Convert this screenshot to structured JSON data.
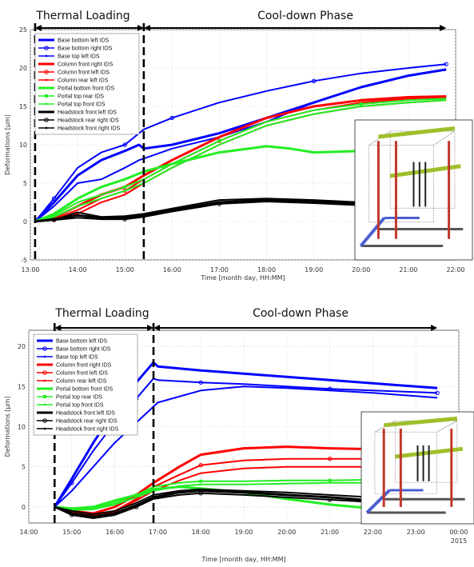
{
  "chart_data": [
    {
      "type": "line",
      "phase_labels": [
        "Thermal Loading",
        "Cool-down Phase"
      ],
      "xlabel": "Time [month day, HH:MM]",
      "ylabel": "Deformations [μm]",
      "x_ticks": [
        "13:00",
        "14:00",
        "15:00",
        "16:00",
        "17:00",
        "18:00",
        "19:00",
        "20:00",
        "21:00",
        "22:00"
      ],
      "y_ticks": [
        "-5",
        "0",
        "5",
        "10",
        "15",
        "20",
        "25"
      ],
      "xlim": [
        13.0,
        22.0
      ],
      "ylim": [
        -5,
        25
      ],
      "phase_boundaries": [
        13.1,
        15.4,
        21.8
      ],
      "grid": true,
      "legend": "top-left",
      "series": [
        {
          "name": "Base bottom left IDS",
          "color": "#0000ff",
          "marker": "none",
          "x": [
            13.1,
            13.5,
            14.0,
            14.5,
            15.0,
            15.3,
            15.4,
            16.0,
            17.0,
            18.0,
            19.0,
            20.0,
            21.0,
            21.8
          ],
          "values": [
            0,
            2.5,
            6.0,
            8.0,
            9.2,
            10.0,
            9.5,
            10.0,
            11.5,
            13.5,
            15.5,
            17.5,
            19.0,
            19.8
          ]
        },
        {
          "name": "Base bottom right IDS",
          "color": "#0000ff",
          "marker": "circle",
          "x": [
            13.1,
            13.5,
            14.0,
            14.5,
            15.0,
            15.3,
            15.4,
            16.0,
            17.0,
            18.0,
            19.0,
            20.0,
            21.0,
            21.8
          ],
          "values": [
            0,
            3.0,
            7.0,
            9.0,
            10.0,
            11.5,
            12.0,
            13.5,
            15.5,
            17.0,
            18.3,
            19.3,
            20.0,
            20.5
          ]
        },
        {
          "name": "Base top left IDS",
          "color": "#0000ff",
          "marker": "dot",
          "x": [
            13.1,
            13.5,
            14.0,
            14.5,
            15.0,
            15.3,
            15.4,
            16.0,
            17.0,
            18.0,
            19.0,
            20.0,
            21.0,
            21.8
          ],
          "values": [
            0,
            2.0,
            5.0,
            5.5,
            7.0,
            8.0,
            8.2,
            9.5,
            11.0,
            13.0,
            15.5,
            17.5,
            19.0,
            19.8
          ]
        },
        {
          "name": "Column front right IDS",
          "color": "#ff0000",
          "marker": "none",
          "x": [
            13.1,
            13.5,
            14.0,
            14.5,
            15.0,
            15.4,
            16.0,
            17.0,
            18.0,
            19.0,
            20.0,
            21.0,
            21.8
          ],
          "values": [
            0,
            0.5,
            2.0,
            3.5,
            4.5,
            6.0,
            8.0,
            11.0,
            13.5,
            15.0,
            15.8,
            16.2,
            16.3
          ]
        },
        {
          "name": "Column front left IDS",
          "color": "#ff0000",
          "marker": "circle",
          "x": [
            13.1,
            13.5,
            14.0,
            14.5,
            15.0,
            15.4,
            16.0,
            17.0,
            18.0,
            19.0,
            20.0,
            21.0,
            21.8
          ],
          "values": [
            0,
            0.3,
            1.5,
            3.0,
            4.0,
            5.5,
            7.5,
            10.5,
            13.0,
            14.5,
            15.5,
            16.0,
            16.2
          ]
        },
        {
          "name": "Column rear left IDS",
          "color": "#ff0000",
          "marker": "dot",
          "x": [
            13.1,
            13.5,
            14.0,
            14.5,
            15.0,
            15.4,
            16.0,
            17.0,
            18.0,
            19.0,
            20.0,
            21.0,
            21.8
          ],
          "values": [
            0,
            0.2,
            1.0,
            2.5,
            3.5,
            5.0,
            7.0,
            10.0,
            12.5,
            14.0,
            15.0,
            15.5,
            15.8
          ]
        },
        {
          "name": "Portal bottom front IDS",
          "color": "#22ee22",
          "marker": "none",
          "x": [
            13.1,
            13.5,
            14.0,
            14.5,
            15.0,
            15.4,
            16.0,
            17.0,
            18.0,
            18.5,
            19.0,
            20.0,
            21.0,
            21.8
          ],
          "values": [
            0,
            1.0,
            3.0,
            4.5,
            5.5,
            6.5,
            7.5,
            9.0,
            9.8,
            9.5,
            9.0,
            9.2,
            9.3,
            9.4
          ]
        },
        {
          "name": "Portal top rear IDS",
          "color": "#22ee22",
          "marker": "square",
          "x": [
            13.1,
            13.5,
            14.0,
            14.5,
            15.0,
            15.4,
            16.0,
            17.0,
            18.0,
            19.0,
            20.0,
            21.0,
            21.8
          ],
          "values": [
            0,
            0.8,
            2.5,
            3.5,
            4.5,
            5.5,
            7.5,
            10.5,
            13.0,
            14.5,
            15.3,
            15.8,
            16.0
          ]
        },
        {
          "name": "Portal top front IDS",
          "color": "#22ee22",
          "marker": "dot",
          "x": [
            13.1,
            13.5,
            14.0,
            14.5,
            15.0,
            15.4,
            16.0,
            17.0,
            18.0,
            19.0,
            20.0,
            21.0,
            21.8
          ],
          "values": [
            0,
            0.6,
            2.0,
            3.0,
            4.0,
            5.0,
            7.0,
            10.0,
            12.5,
            14.0,
            15.0,
            15.5,
            15.8
          ]
        },
        {
          "name": "Headstock front left IDS",
          "color": "#000000",
          "marker": "none",
          "x": [
            13.1,
            13.5,
            14.0,
            14.5,
            15.0,
            15.4,
            16.0,
            17.0,
            18.0,
            19.0,
            20.0,
            21.0,
            21.8
          ],
          "values": [
            0,
            0.3,
            0.8,
            0.5,
            0.5,
            0.8,
            1.5,
            2.5,
            2.8,
            2.6,
            2.3,
            2.2,
            2.3
          ]
        },
        {
          "name": "Headstock rear right IDS",
          "color": "#000000",
          "marker": "circle",
          "x": [
            13.1,
            13.5,
            14.0,
            14.5,
            15.0,
            15.4,
            16.0,
            17.0,
            18.0,
            19.0,
            20.0,
            21.0,
            21.8
          ],
          "values": [
            0,
            0.2,
            0.5,
            0.3,
            0.3,
            0.6,
            1.3,
            2.3,
            2.6,
            2.4,
            2.1,
            2.0,
            2.1
          ]
        },
        {
          "name": "Headstock front right IDS",
          "color": "#000000",
          "marker": "dot",
          "x": [
            13.1,
            13.5,
            14.0,
            14.5,
            15.0,
            15.4,
            16.0,
            17.0,
            18.0,
            19.0,
            20.0,
            21.0,
            21.8
          ],
          "values": [
            0,
            0.2,
            1.2,
            0.6,
            0.7,
            1.0,
            1.7,
            2.8,
            3.0,
            2.8,
            2.5,
            2.4,
            2.5
          ]
        }
      ]
    },
    {
      "type": "line",
      "phase_labels": [
        "Thermal Loading",
        "Cool-down Phase"
      ],
      "xlabel": "Time [month day, HH:MM]",
      "ylabel": "Deformations [μm]",
      "x_ticks": [
        "14:00",
        "15:00",
        "16:00",
        "17:00",
        "18:00",
        "19:00",
        "20:00",
        "21:00",
        "22:00",
        "23:00",
        "00:00"
      ],
      "x_tick_sub": "2015",
      "y_ticks": [
        "0",
        "5",
        "10",
        "15",
        "20"
      ],
      "xlim": [
        14.0,
        24.0
      ],
      "ylim": [
        -2,
        22
      ],
      "phase_boundaries": [
        14.6,
        16.9,
        23.5
      ],
      "grid": true,
      "legend": "top-left",
      "series": [
        {
          "name": "Base bottom left IDS",
          "color": "#0000ff",
          "marker": "none",
          "x": [
            14.6,
            15.0,
            15.5,
            16.0,
            16.5,
            16.9,
            17.0,
            18.0,
            19.0,
            20.0,
            21.0,
            22.0,
            23.0,
            23.5
          ],
          "values": [
            0,
            3.5,
            8.0,
            12.0,
            15.5,
            18.0,
            17.5,
            17.0,
            16.6,
            16.2,
            15.8,
            15.4,
            15.0,
            14.8
          ]
        },
        {
          "name": "Base bottom right IDS",
          "color": "#0000ff",
          "marker": "circle",
          "x": [
            14.6,
            15.0,
            15.5,
            16.0,
            16.5,
            16.9,
            17.0,
            18.0,
            19.0,
            20.0,
            21.0,
            22.0,
            23.0,
            23.5
          ],
          "values": [
            0,
            3.0,
            7.0,
            10.5,
            13.5,
            16.0,
            15.8,
            15.5,
            15.3,
            15.0,
            14.7,
            14.5,
            14.3,
            14.2
          ]
        },
        {
          "name": "Base top left IDS",
          "color": "#0000ff",
          "marker": "dot",
          "x": [
            14.6,
            15.0,
            15.5,
            16.0,
            16.5,
            16.9,
            17.0,
            18.0,
            19.0,
            20.0,
            21.0,
            22.0,
            23.0,
            23.5
          ],
          "values": [
            0,
            2.0,
            5.0,
            8.0,
            10.5,
            12.5,
            13.0,
            14.5,
            15.0,
            14.8,
            14.5,
            14.2,
            13.8,
            13.6
          ]
        },
        {
          "name": "Column front right IDS",
          "color": "#ff0000",
          "marker": "none",
          "x": [
            14.6,
            15.0,
            15.5,
            16.0,
            16.5,
            16.9,
            17.5,
            18.0,
            19.0,
            20.0,
            21.0,
            22.0,
            23.0,
            23.5
          ],
          "values": [
            0,
            -0.5,
            -0.8,
            0.0,
            1.5,
            3.0,
            5.0,
            6.5,
            7.3,
            7.5,
            7.3,
            7.2,
            7.1,
            7.0
          ]
        },
        {
          "name": "Column front left IDS",
          "color": "#ff0000",
          "marker": "circle",
          "x": [
            14.6,
            15.0,
            15.5,
            16.0,
            16.5,
            16.9,
            17.5,
            18.0,
            19.0,
            20.0,
            21.0,
            22.0,
            23.0,
            23.5
          ],
          "values": [
            0,
            -0.7,
            -1.0,
            -0.5,
            1.0,
            2.5,
            4.0,
            5.2,
            5.8,
            6.0,
            6.0,
            6.0,
            6.1,
            6.2
          ]
        },
        {
          "name": "Column rear left IDS",
          "color": "#ff0000",
          "marker": "dot",
          "x": [
            14.6,
            15.0,
            15.5,
            16.0,
            16.5,
            16.9,
            17.5,
            18.0,
            19.0,
            20.0,
            21.0,
            22.0,
            23.0,
            23.5
          ],
          "values": [
            0,
            -0.8,
            -1.2,
            -0.6,
            0.8,
            2.0,
            3.3,
            4.2,
            4.8,
            5.0,
            5.0,
            5.0,
            5.0,
            5.0
          ]
        },
        {
          "name": "Portal bottom front IDS",
          "color": "#22ee22",
          "marker": "none",
          "x": [
            14.6,
            15.0,
            15.5,
            16.0,
            16.5,
            16.9,
            17.5,
            18.0,
            19.0,
            20.0,
            21.0,
            22.0,
            23.0,
            23.5
          ],
          "values": [
            0,
            -0.2,
            0.0,
            0.8,
            1.5,
            2.2,
            2.5,
            2.3,
            1.8,
            1.0,
            0.3,
            -0.2,
            -0.8,
            -1.2
          ]
        },
        {
          "name": "Portal top rear IDS",
          "color": "#22ee22",
          "marker": "square",
          "x": [
            14.6,
            15.0,
            15.5,
            16.0,
            16.5,
            16.9,
            17.5,
            18.0,
            19.0,
            20.0,
            21.0,
            22.0,
            23.0,
            23.5
          ],
          "values": [
            0,
            -0.3,
            -0.2,
            0.5,
            1.5,
            2.5,
            3.0,
            3.2,
            3.2,
            3.3,
            3.3,
            3.4,
            3.5,
            3.6
          ]
        },
        {
          "name": "Portal top front IDS",
          "color": "#22ee22",
          "marker": "dot",
          "x": [
            14.6,
            15.0,
            15.5,
            16.0,
            16.5,
            16.9,
            17.5,
            18.0,
            19.0,
            20.0,
            21.0,
            22.0,
            23.0,
            23.5
          ],
          "values": [
            0,
            -0.4,
            -0.3,
            0.3,
            1.2,
            2.0,
            2.6,
            2.8,
            2.8,
            2.9,
            3.0,
            3.0,
            3.1,
            3.2
          ]
        },
        {
          "name": "Headstock front left IDS",
          "color": "#000000",
          "marker": "none",
          "x": [
            14.6,
            15.0,
            15.5,
            16.0,
            16.5,
            16.9,
            17.5,
            18.0,
            19.0,
            20.0,
            21.0,
            22.0,
            23.0,
            23.5
          ],
          "values": [
            0,
            -0.8,
            -1.2,
            -0.8,
            0.2,
            1.2,
            1.8,
            2.0,
            1.8,
            1.5,
            1.2,
            0.8,
            0.5,
            0.3
          ]
        },
        {
          "name": "Headstock rear right IDS",
          "color": "#000000",
          "marker": "circle",
          "x": [
            14.6,
            15.0,
            15.5,
            16.0,
            16.5,
            16.9,
            17.5,
            18.0,
            19.0,
            20.0,
            21.0,
            22.0,
            23.0,
            23.5
          ],
          "values": [
            0,
            -1.0,
            -1.4,
            -1.0,
            0.0,
            1.0,
            1.5,
            1.7,
            1.5,
            1.2,
            0.9,
            0.6,
            0.3,
            0.1
          ]
        },
        {
          "name": "Headstock front right IDS",
          "color": "#000000",
          "marker": "dot",
          "x": [
            14.6,
            15.0,
            15.5,
            16.0,
            16.5,
            16.9,
            17.5,
            18.0,
            19.0,
            20.0,
            21.0,
            22.0,
            23.0,
            23.5
          ],
          "values": [
            0,
            -0.5,
            -0.9,
            -0.5,
            0.5,
            1.5,
            2.0,
            2.2,
            2.0,
            1.8,
            1.5,
            1.2,
            0.9,
            0.7
          ]
        }
      ]
    }
  ]
}
